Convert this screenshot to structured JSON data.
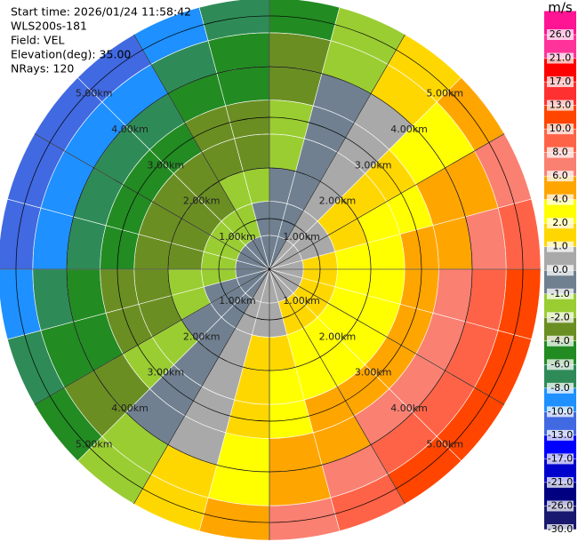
{
  "chart_data": {
    "type": "ppi",
    "header": [
      "Start time: 2026/01/24 11:58:42",
      "WLS200s-181",
      "Field: VEL",
      "Elevation(deg): 35.00",
      "NRays: 120"
    ],
    "colorbar_label": "m/s",
    "colorbar_ticks": [
      {
        "value": 26,
        "label": "26.0"
      },
      {
        "value": 21,
        "label": "21.0"
      },
      {
        "value": 17,
        "label": "17.0"
      },
      {
        "value": 13,
        "label": "13.0"
      },
      {
        "value": 10,
        "label": "10.0"
      },
      {
        "value": 8,
        "label": "8.0"
      },
      {
        "value": 6,
        "label": "6.0"
      },
      {
        "value": 4,
        "label": "4.0"
      },
      {
        "value": 2,
        "label": "2.0"
      },
      {
        "value": 1,
        "label": "1.0"
      },
      {
        "value": 0,
        "label": "0.0"
      },
      {
        "value": -1,
        "label": "-1.0"
      },
      {
        "value": -2,
        "label": "-2.0"
      },
      {
        "value": -4,
        "label": "-4.0"
      },
      {
        "value": -6,
        "label": "-6.0"
      },
      {
        "value": -8,
        "label": "-8.0"
      },
      {
        "value": -10,
        "label": "-10.0"
      },
      {
        "value": -13,
        "label": "-13.0"
      },
      {
        "value": -17,
        "label": "-17.0"
      },
      {
        "value": -21,
        "label": "-21.0"
      },
      {
        "value": -26,
        "label": "-26.0"
      },
      {
        "value": -30,
        "label": "-30.0"
      }
    ],
    "colors": [
      "#ff1493",
      "#ff3399",
      "#ff0000",
      "#ff3030",
      "#ff4500",
      "#ff6347",
      "#fa8072",
      "#ffa500",
      "#ffff00",
      "#ffd700",
      "#a9a9a9",
      "#708090",
      "#9acd32",
      "#6b8e23",
      "#228b22",
      "#2e8b57",
      "#1e90ff",
      "#4169e1",
      "#0000ff",
      "#0000cd",
      "#000080",
      "#191970"
    ],
    "rlim": [
      0,
      5.35
    ],
    "range_rings": [
      {
        "value": 1,
        "label": "1.00km"
      },
      {
        "value": 2,
        "label": "2.00km"
      },
      {
        "value": 3,
        "label": "3.00km"
      },
      {
        "value": 4,
        "label": "4.00km"
      },
      {
        "value": 5,
        "label": "5.00km"
      }
    ],
    "azimuths": [
      7.5,
      22.5,
      37.5,
      52.5,
      67.5,
      82.5,
      97.5,
      112.5,
      127.5,
      142.5,
      157.5,
      172.5,
      187.5,
      202.5,
      217.5,
      232.5,
      247.5,
      262.5,
      277.5,
      292.5,
      307.5,
      322.5,
      337.5,
      352.5
    ],
    "range_edges": [
      0,
      0.67,
      1.34,
      2.0,
      2.67,
      3.34,
      4.0,
      4.67,
      5.35
    ],
    "values": [
      [
        -0.2,
        -0.1,
        0.1,
        0.2,
        0.3,
        0.4,
        0.5,
        0.5,
        0.5,
        0.5,
        0.4,
        0.3,
        0.2,
        0.1,
        -0.1,
        -0.2,
        -0.3,
        -0.4,
        -0.5,
        -0.5,
        -0.5,
        -0.5,
        -0.4,
        -0.3
      ],
      [
        -0.6,
        -0.2,
        0.2,
        0.6,
        0.9,
        1.2,
        1.4,
        1.5,
        1.5,
        1.4,
        1.2,
        0.9,
        0.6,
        0.2,
        -0.2,
        -0.6,
        -0.9,
        -1.2,
        -1.4,
        -1.5,
        -1.5,
        -1.4,
        -1.2,
        -0.9
      ],
      [
        -1.0,
        -0.3,
        0.3,
        1.0,
        1.5,
        2.0,
        2.3,
        2.5,
        2.5,
        2.3,
        2.0,
        1.5,
        1.0,
        0.3,
        -0.3,
        -1.0,
        -1.5,
        -2.0,
        -2.3,
        -2.5,
        -2.5,
        -2.3,
        -2.0,
        -1.5
      ],
      [
        -1.3,
        -0.5,
        0.5,
        1.3,
        2.1,
        2.8,
        3.2,
        3.5,
        3.5,
        3.2,
        2.8,
        2.1,
        1.3,
        0.5,
        -0.5,
        -1.3,
        -2.1,
        -2.8,
        -3.2,
        -3.5,
        -3.5,
        -3.2,
        -2.8,
        -2.1
      ],
      [
        -1.9,
        -0.7,
        0.7,
        1.9,
        3.1,
        4.0,
        4.6,
        5.0,
        5.0,
        4.6,
        4.0,
        3.1,
        1.9,
        0.7,
        -0.7,
        -1.9,
        -3.1,
        -4.0,
        -4.6,
        -5.0,
        -5.0,
        -4.6,
        -4.0,
        -3.1
      ],
      [
        -2.7,
        -0.9,
        0.9,
        2.7,
        4.3,
        5.5,
        6.4,
        6.9,
        6.9,
        6.4,
        5.5,
        4.3,
        2.7,
        0.9,
        -0.9,
        -2.7,
        -4.3,
        -5.5,
        -6.4,
        -6.9,
        -6.9,
        -6.4,
        -5.5,
        -4.3
      ],
      [
        -3.4,
        -1.2,
        1.2,
        3.4,
        5.5,
        7.1,
        8.3,
        8.9,
        8.9,
        8.3,
        7.1,
        5.5,
        3.4,
        1.2,
        -1.2,
        -3.4,
        -5.5,
        -7.1,
        -8.3,
        -8.9,
        -8.9,
        -8.3,
        -7.1,
        -5.5
      ],
      [
        -4.2,
        -1.4,
        1.4,
        4.2,
        6.7,
        8.7,
        10.1,
        10.9,
        10.9,
        10.1,
        8.7,
        6.7,
        4.2,
        1.4,
        -1.4,
        -4.2,
        -6.7,
        -8.7,
        -10.1,
        -10.9,
        -10.9,
        -10.1,
        -8.7,
        -6.7
      ]
    ]
  }
}
